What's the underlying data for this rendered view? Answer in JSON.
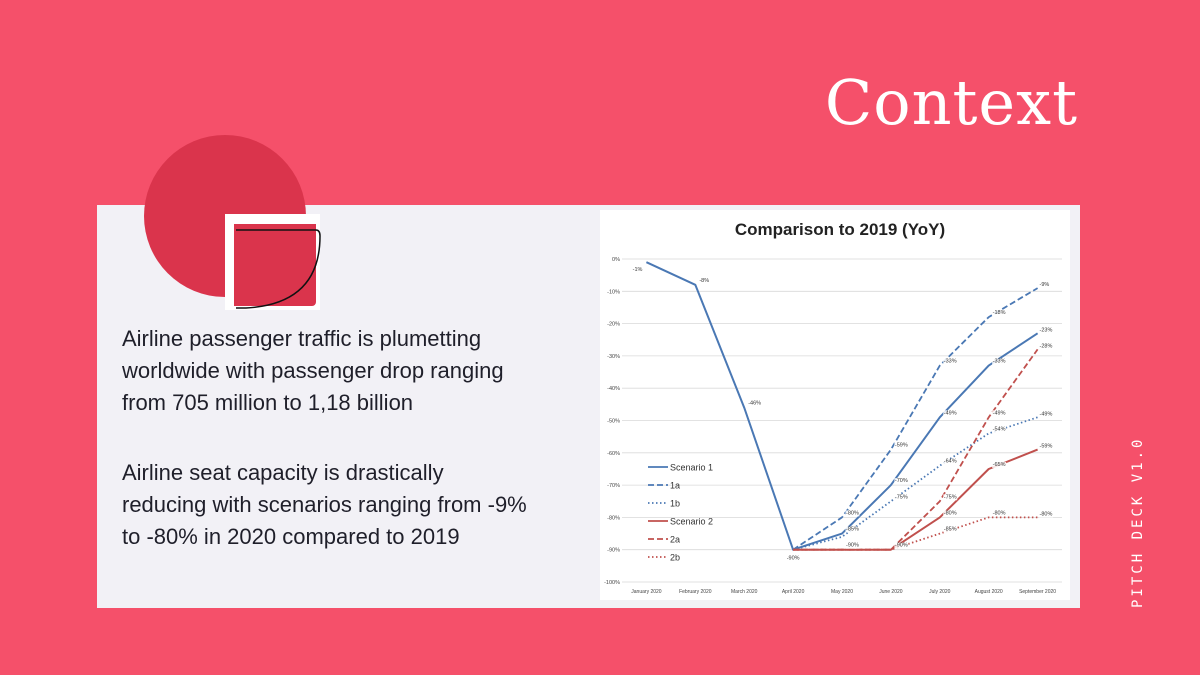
{
  "slide": {
    "title": "Context",
    "paragraph1": "Airline passenger traffic is plumetting\n worldwide with  passenger drop ranging\nfrom 705 million to 1,18 billion",
    "paragraph2": "Airline seat capacity is drastically\nreducing with scenarios ranging from -9%\nto -80% in 2020 compared to 2019",
    "side_label": "PITCH DECK V1.0",
    "colors": {
      "background": "#f5506a",
      "accent": "#da344c",
      "card": "#f2f1f6"
    }
  },
  "chart_data": {
    "type": "line",
    "title": "Comparison to 2019 (YoY)",
    "categories": [
      "January 2020",
      "February 2020",
      "March 2020",
      "April 2020",
      "May 2020",
      "June 2020",
      "July 2020",
      "August 2020",
      "September 2020"
    ],
    "y_ticks": [
      "0%",
      "-10%",
      "-20%",
      "-30%",
      "-40%",
      "-50%",
      "-60%",
      "-70%",
      "-80%",
      "-90%",
      "-100%"
    ],
    "ylim": [
      -100,
      0
    ],
    "grid": true,
    "legend_position": "bottom-left",
    "series": [
      {
        "name": "Scenario 1",
        "color": "#4a78b4",
        "dash": "solid",
        "values": [
          -1,
          -8,
          -46,
          -90,
          -85,
          -70,
          -49,
          -33,
          -23
        ],
        "labels": [
          "-1%",
          "-8%",
          "-46%",
          "-90%",
          "-85%",
          "-70%",
          "-49%",
          "-33%",
          "-23%"
        ]
      },
      {
        "name": "1a",
        "color": "#4a78b4",
        "dash": "dashed",
        "values": [
          null,
          null,
          null,
          -90,
          -80,
          -59,
          -33,
          -18,
          -9
        ],
        "labels": [
          "",
          "",
          "",
          "",
          "-80%",
          "-59%",
          "-33%",
          "-18%",
          "-9%"
        ]
      },
      {
        "name": "1b",
        "color": "#4a78b4",
        "dash": "dotted",
        "values": [
          null,
          null,
          null,
          -90,
          -86,
          -75,
          -64,
          -54,
          -49
        ],
        "labels": [
          "",
          "",
          "",
          "",
          "",
          "-75%",
          "-64%",
          "-54%",
          "-49%"
        ]
      },
      {
        "name": "Scenario 2",
        "color": "#c0504d",
        "dash": "solid",
        "values": [
          null,
          null,
          null,
          -90,
          -90,
          -90,
          -80,
          -65,
          -59
        ],
        "labels": [
          "",
          "",
          "",
          "",
          "-90%",
          "-90%",
          "-80%",
          "-65%",
          "-59%"
        ]
      },
      {
        "name": "2a",
        "color": "#c0504d",
        "dash": "dashed",
        "values": [
          null,
          null,
          null,
          -90,
          -90,
          -90,
          -75,
          -49,
          -28
        ],
        "labels": [
          "",
          "",
          "",
          "",
          "",
          "",
          "-75%",
          "-49%",
          "-28%"
        ]
      },
      {
        "name": "2b",
        "color": "#c0504d",
        "dash": "dotted",
        "values": [
          null,
          null,
          null,
          -90,
          -90,
          -90,
          -85,
          -80,
          -80
        ],
        "labels": [
          "",
          "",
          "",
          "",
          "",
          "",
          "-85%",
          "-80%",
          "-80%"
        ]
      }
    ]
  }
}
